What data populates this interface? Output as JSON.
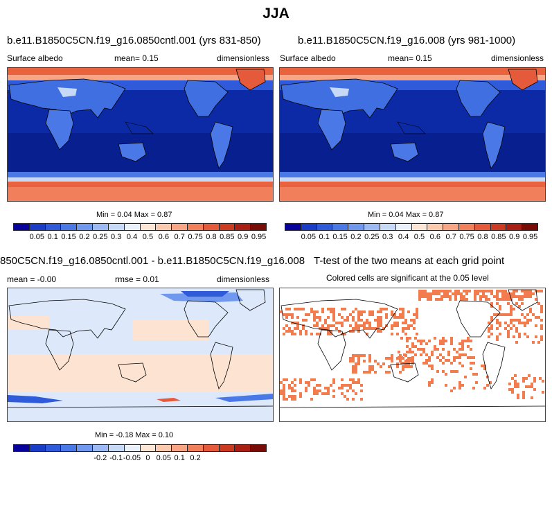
{
  "title": "JJA",
  "panels": {
    "top_left": {
      "title": "b.e11.B1850C5CN.f19_g16.0850cntl.001 (yrs 831-850)",
      "left_label": "Surface albedo",
      "center_label": "mean=   0.15",
      "right_label": "dimensionless",
      "stats": "Min =   0.04 Max =   0.87"
    },
    "top_right": {
      "title": "b.e11.B1850C5CN.f19_g16.008 (yrs 981-1000)",
      "left_label": "Surface albedo",
      "center_label": "mean=   0.15",
      "right_label": "dimensionless",
      "stats": "Min =   0.04 Max =   0.87"
    },
    "bottom_left": {
      "title": "850C5CN.f19_g16.0850cntl.001 - b.e11.B1850C5CN.f19_g16.008",
      "left_label": "mean =  -0.00",
      "center_label": "rmse =   0.01",
      "right_label": "dimensionless",
      "stats": "Min =  -0.18 Max =   0.10"
    },
    "bottom_right": {
      "title": "T-test of the two means at each grid point",
      "subtitle": "Colored cells are significant at the 0.05 level"
    }
  },
  "colorbars": {
    "albedo": {
      "colors": [
        "#08039c",
        "#1a3dc8",
        "#2f5ad9",
        "#4a78e6",
        "#6f98ee",
        "#9cb9f3",
        "#c6d9f7",
        "#eaf1fb",
        "#fde6d6",
        "#fbc9ae",
        "#f7a584",
        "#f17f5c",
        "#e45a3a",
        "#cc3a22",
        "#a91f14",
        "#7a0c08"
      ],
      "labels": [
        "0.05",
        "0.1",
        "0.15",
        "0.2",
        "0.25",
        "0.3",
        "0.4",
        "0.5",
        "0.6",
        "0.7",
        "0.75",
        "0.8",
        "0.85",
        "0.9",
        "0.95"
      ]
    },
    "diff": {
      "colors": [
        "#08039c",
        "#1a3dc8",
        "#2f5ad9",
        "#4a78e6",
        "#6f98ee",
        "#9cb9f3",
        "#c6d9f7",
        "#eaf1fb",
        "#fde6d6",
        "#fbc9ae",
        "#f7a584",
        "#f17f5c",
        "#e45a3a",
        "#cc3a22",
        "#a91f14",
        "#7a0c08"
      ],
      "labels": [
        "-0.2",
        "-0.1",
        "-0.05",
        "0",
        "0.05",
        "0.1",
        "0.2"
      ]
    }
  },
  "colors": {
    "ocean_deep": "#0c2aa6",
    "ocean_mid": "#1740c8",
    "land_mid": "#3f6fe0",
    "ice": "#e8623e",
    "ice_edge": "#f7a584",
    "diff_bg": "#dde9fb",
    "diff_pos": "#fde3d2",
    "diff_neg": "#6f98ee",
    "sig": "#f27c4e"
  }
}
